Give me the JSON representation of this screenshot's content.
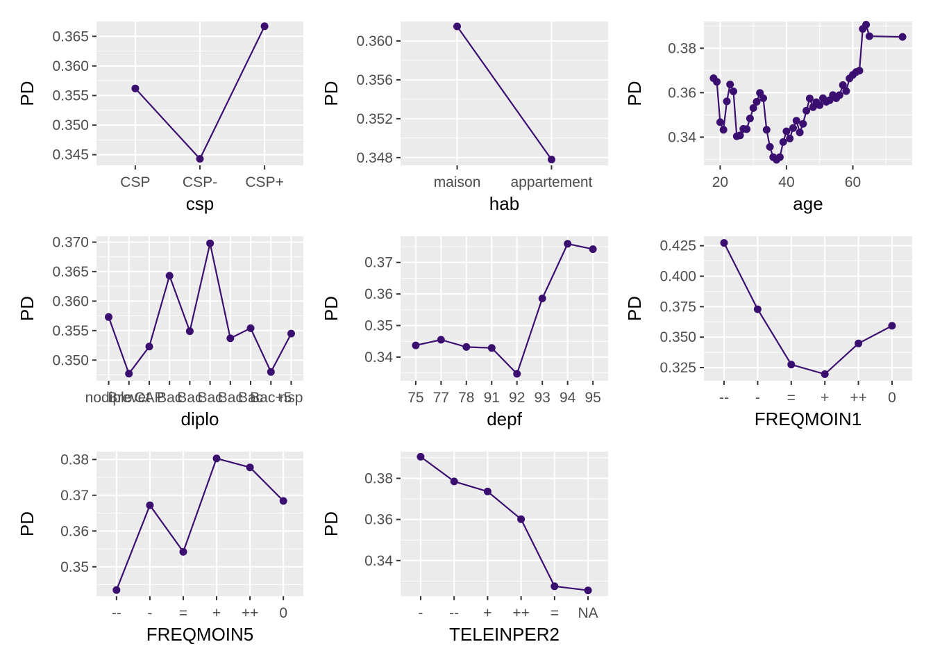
{
  "colors": {
    "panel_background": "#ebebeb",
    "grid_major": "#ffffff",
    "tick_text": "#4d4d4d",
    "series": "#3b0f70"
  },
  "chart_data": [
    {
      "type": "line",
      "xlabel": "csp",
      "ylabel": "PD",
      "x_scale": "categorical",
      "categories": [
        "CSP",
        "CSP-",
        "CSP+"
      ],
      "y_ticks": [
        0.345,
        0.35,
        0.355,
        0.36,
        0.365
      ],
      "y_tick_labels": [
        "0.345",
        "0.350",
        "0.355",
        "0.360",
        "0.365"
      ],
      "ylim": [
        0.3432,
        0.3675
      ],
      "series": [
        {
          "values": [
            0.3562,
            0.3443,
            0.3667
          ]
        }
      ]
    },
    {
      "type": "line",
      "xlabel": "hab",
      "ylabel": "PD",
      "x_scale": "categorical",
      "categories": [
        "maison",
        "appartement"
      ],
      "y_ticks": [
        0.348,
        0.352,
        0.356,
        0.36
      ],
      "y_tick_labels": [
        "0.348",
        "0.352",
        "0.356",
        "0.360"
      ],
      "ylim": [
        0.3472,
        0.362
      ],
      "series": [
        {
          "values": [
            0.3615,
            0.3478
          ]
        }
      ]
    },
    {
      "type": "line",
      "xlabel": "age",
      "ylabel": "PD",
      "x_scale": "numeric",
      "x_ticks": [
        20,
        40,
        60
      ],
      "x_tick_labels": [
        "20",
        "40",
        "60"
      ],
      "xlim": [
        15.1,
        77.9
      ],
      "y_ticks": [
        0.34,
        0.36,
        0.38
      ],
      "y_tick_labels": [
        "0.34",
        "0.36",
        "0.38"
      ],
      "ylim": [
        0.3273,
        0.392
      ],
      "series": [
        {
          "x": [
            18,
            19,
            20,
            21,
            22,
            23,
            24,
            25,
            26,
            27,
            28,
            29,
            30,
            31,
            32,
            33,
            34,
            35,
            36,
            37,
            38,
            39,
            40,
            41,
            42,
            43,
            44,
            45,
            46,
            47,
            48,
            49,
            50,
            51,
            52,
            53,
            54,
            55,
            56,
            57,
            58,
            59,
            60,
            61,
            62,
            63,
            64,
            65,
            75
          ],
          "y": [
            0.3665,
            0.3649,
            0.3467,
            0.3433,
            0.3561,
            0.3637,
            0.3606,
            0.3404,
            0.3408,
            0.3437,
            0.3436,
            0.3484,
            0.3531,
            0.3559,
            0.3599,
            0.3575,
            0.3433,
            0.3356,
            0.331,
            0.3298,
            0.331,
            0.3378,
            0.3426,
            0.3394,
            0.3441,
            0.3474,
            0.3421,
            0.346,
            0.3519,
            0.3574,
            0.3535,
            0.3557,
            0.3544,
            0.3575,
            0.3559,
            0.3566,
            0.3589,
            0.3575,
            0.3589,
            0.3634,
            0.3607,
            0.3664,
            0.368,
            0.3693,
            0.3699,
            0.3887,
            0.3906,
            0.3854,
            0.3851
          ]
        }
      ]
    },
    {
      "type": "line",
      "xlabel": "diplo",
      "ylabel": "PD",
      "x_scale": "categorical",
      "categories": [
        "nodiplo",
        "Brevet",
        "CAP",
        "Bac",
        "BacPro",
        "Bac+2",
        "Bac+3",
        "Bac+4",
        "Bac+5",
        "nsp"
      ],
      "tick_labels_visible": [
        "nodiplo",
        "Brevet",
        "CAP",
        "Bac",
        "Bac",
        "Bac",
        "Bac",
        "Bac",
        "Bac+5",
        "nsp"
      ],
      "y_ticks": [
        0.35,
        0.355,
        0.36,
        0.365,
        0.37
      ],
      "y_tick_labels": [
        "0.350",
        "0.355",
        "0.360",
        "0.365",
        "0.370"
      ],
      "ylim": [
        0.3465,
        0.371
      ],
      "series": [
        {
          "values": [
            0.3573,
            0.3477,
            0.3523,
            0.3643,
            0.3549,
            0.3698,
            0.3537,
            0.3554,
            0.348,
            0.3545
          ]
        }
      ]
    },
    {
      "type": "line",
      "xlabel": "depf",
      "ylabel": "PD",
      "x_scale": "categorical",
      "categories": [
        "75",
        "77",
        "78",
        "91",
        "92",
        "93",
        "94",
        "95"
      ],
      "y_ticks": [
        0.34,
        0.35,
        0.36,
        0.37
      ],
      "y_tick_labels": [
        "0.34",
        "0.35",
        "0.36",
        "0.37"
      ],
      "ylim": [
        0.3325,
        0.3783
      ],
      "series": [
        {
          "values": [
            0.3437,
            0.3455,
            0.3432,
            0.3429,
            0.3347,
            0.3586,
            0.3759,
            0.3742
          ]
        }
      ]
    },
    {
      "type": "line",
      "xlabel": "FREQMOIN1",
      "ylabel": "PD",
      "x_scale": "categorical",
      "categories": [
        "--",
        "-",
        "=",
        "+",
        "++",
        "0"
      ],
      "y_ticks": [
        0.325,
        0.35,
        0.375,
        0.4,
        0.425
      ],
      "y_tick_labels": [
        "0.325",
        "0.350",
        "0.375",
        "0.400",
        "0.425"
      ],
      "ylim": [
        0.3142,
        0.4328
      ],
      "series": [
        {
          "values": [
            0.4273,
            0.3729,
            0.3275,
            0.3196,
            0.3448,
            0.3593
          ]
        }
      ]
    },
    {
      "type": "line",
      "xlabel": "FREQMOIN5",
      "ylabel": "PD",
      "x_scale": "categorical",
      "categories": [
        "--",
        "-",
        "=",
        "+",
        "++",
        "0"
      ],
      "y_ticks": [
        0.35,
        0.36,
        0.37,
        0.38
      ],
      "y_tick_labels": [
        "0.35",
        "0.36",
        "0.37",
        "0.38"
      ],
      "ylim": [
        0.3418,
        0.3822
      ],
      "series": [
        {
          "values": [
            0.3435,
            0.3672,
            0.3542,
            0.3803,
            0.3778,
            0.3684
          ]
        }
      ]
    },
    {
      "type": "line",
      "xlabel": "TELEINPER2",
      "ylabel": "PD",
      "x_scale": "categorical",
      "categories": [
        "-",
        "--",
        "+",
        "++",
        "=",
        "NA"
      ],
      "y_ticks": [
        0.34,
        0.36,
        0.38
      ],
      "y_tick_labels": [
        "0.34",
        "0.36",
        "0.38"
      ],
      "ylim": [
        0.3227,
        0.393
      ],
      "series": [
        {
          "values": [
            0.3905,
            0.3785,
            0.3736,
            0.3601,
            0.3275,
            0.3255
          ]
        }
      ]
    }
  ]
}
